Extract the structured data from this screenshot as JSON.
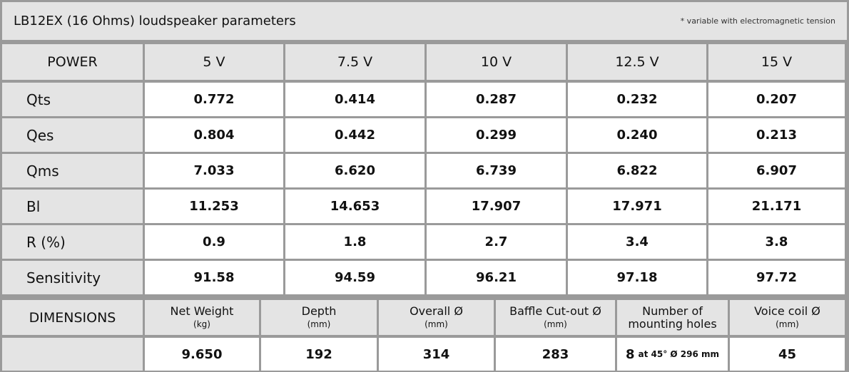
{
  "header": {
    "title": "LB12EX (16 Ohms) loudspeaker parameters",
    "note": "* variable with electromagnetic tension"
  },
  "table": {
    "columns": [
      "POWER",
      "5 V",
      "7.5 V",
      "10 V",
      "12.5 V",
      "15 V"
    ],
    "rows": [
      [
        "Qts",
        "0.772",
        "0.414",
        "0.287",
        "0.232",
        "0.207"
      ],
      [
        "Qes",
        "0.804",
        "0.442",
        "0.299",
        "0.240",
        "0.213"
      ],
      [
        "Qms",
        "7.033",
        "6.620",
        "6.739",
        "6.822",
        "6.907"
      ],
      [
        "Bl",
        "11.253",
        "14.653",
        "17.907",
        "17.971",
        "21.171"
      ],
      [
        "R (%)",
        "0.9",
        "1.8",
        "2.7",
        "3.4",
        "3.8"
      ],
      [
        "Sensitivity",
        "91.58",
        "94.59",
        "96.21",
        "97.18",
        "97.72"
      ]
    ]
  },
  "dimensions": {
    "label": "DIMENSIONS",
    "columns": [
      {
        "name": "Net Weight",
        "unit": "(kg)"
      },
      {
        "name": "Depth",
        "unit": "(mm)"
      },
      {
        "name": "Overall Ø",
        "unit": "(mm)"
      },
      {
        "name": "Baffle Cut-out Ø",
        "unit": "(mm)"
      },
      {
        "name": "Number of mounting holes"
      },
      {
        "name": "Voice coil Ø",
        "unit": "(mm)"
      }
    ],
    "values": [
      "9.650",
      "192",
      "314",
      "283",
      {
        "main": "8",
        "note": "at 45° Ø 296 mm"
      },
      "45"
    ]
  }
}
